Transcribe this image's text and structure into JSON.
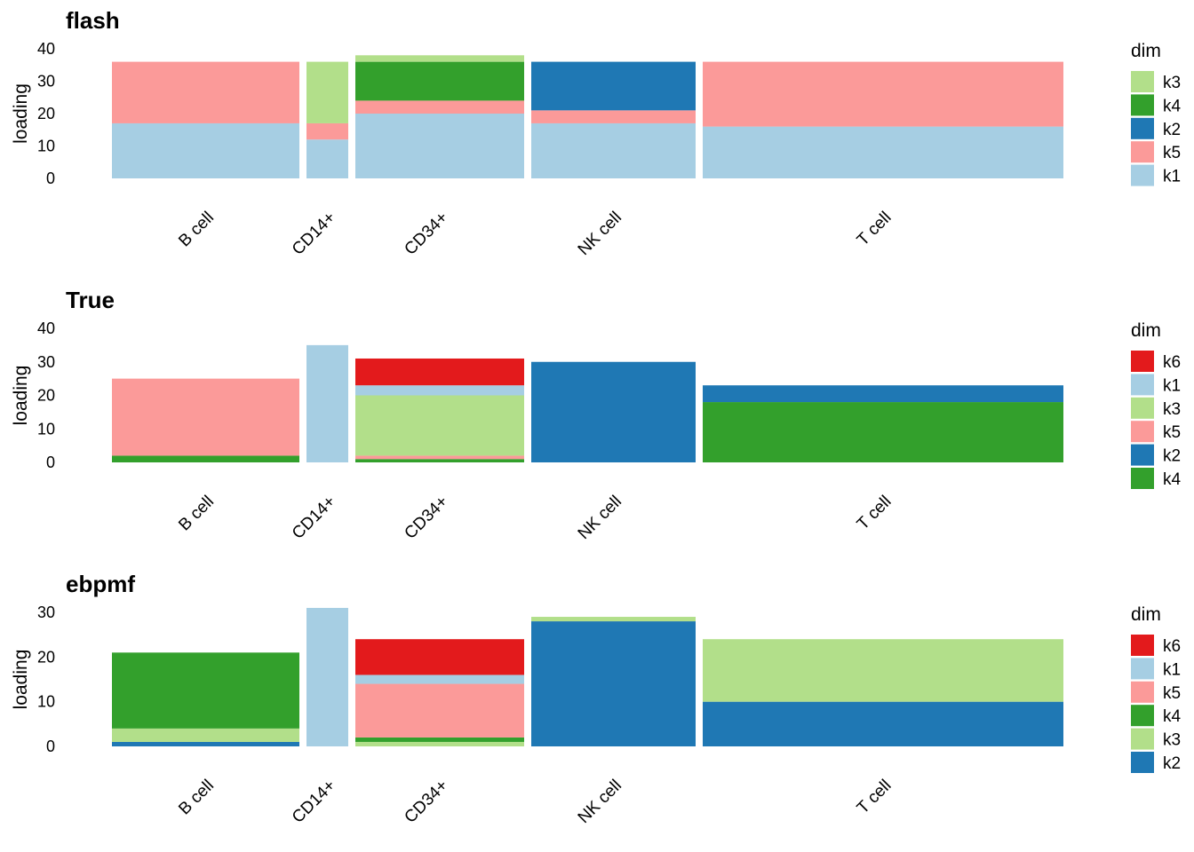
{
  "colors": {
    "k1": "#a6cee3",
    "k2": "#1f78b4",
    "k3": "#b2df8a",
    "k4": "#33a02c",
    "k5": "#fb9a99",
    "k6": "#e31a1c"
  },
  "chart_data": [
    {
      "type": "bar",
      "stacked": true,
      "title": "flash",
      "ylabel": "loading",
      "xlabel": "",
      "ylim": [
        0,
        40
      ],
      "yticks": [
        0,
        10,
        20,
        30,
        40
      ],
      "legend_title": "dim",
      "legend": [
        "k3",
        "k4",
        "k2",
        "k5",
        "k1"
      ],
      "legend_position": "right",
      "grid": false,
      "categories": [
        "B cell",
        "CD14+",
        "CD34+",
        "NK cell",
        "T cell"
      ],
      "series": [
        {
          "name": "k1",
          "values": [
            17,
            12,
            20,
            17,
            16
          ]
        },
        {
          "name": "k5",
          "values": [
            19,
            5,
            4,
            4,
            20
          ]
        },
        {
          "name": "k2",
          "values": [
            0,
            0,
            0,
            15,
            0
          ]
        },
        {
          "name": "k4",
          "values": [
            0,
            0,
            12,
            0,
            0
          ]
        },
        {
          "name": "k3",
          "values": [
            0,
            19,
            2,
            0,
            0
          ]
        }
      ]
    },
    {
      "type": "bar",
      "stacked": true,
      "title": "True",
      "ylabel": "loading",
      "xlabel": "",
      "ylim": [
        0,
        40
      ],
      "yticks": [
        0,
        10,
        20,
        30,
        40
      ],
      "legend_title": "dim",
      "legend": [
        "k6",
        "k1",
        "k3",
        "k5",
        "k2",
        "k4"
      ],
      "legend_position": "right",
      "grid": false,
      "categories": [
        "B cell",
        "CD14+",
        "CD34+",
        "NK cell",
        "T cell"
      ],
      "series": [
        {
          "name": "k4",
          "values": [
            2,
            0,
            1,
            0,
            18
          ]
        },
        {
          "name": "k2",
          "values": [
            0,
            0,
            0,
            30,
            5
          ]
        },
        {
          "name": "k5",
          "values": [
            23,
            0,
            1,
            0,
            0
          ]
        },
        {
          "name": "k3",
          "values": [
            0,
            0,
            18,
            0,
            0
          ]
        },
        {
          "name": "k1",
          "values": [
            0,
            35,
            3,
            0,
            0
          ]
        },
        {
          "name": "k6",
          "values": [
            0,
            0,
            8,
            0,
            0
          ]
        }
      ]
    },
    {
      "type": "bar",
      "stacked": true,
      "title": "ebpmf",
      "ylabel": "loading",
      "xlabel": "",
      "ylim": [
        0,
        30
      ],
      "yticks": [
        0,
        10,
        20,
        30
      ],
      "legend_title": "dim",
      "legend": [
        "k6",
        "k1",
        "k5",
        "k4",
        "k3",
        "k2"
      ],
      "legend_position": "right",
      "grid": false,
      "categories": [
        "B cell",
        "CD14+",
        "CD34+",
        "NK cell",
        "T cell"
      ],
      "series": [
        {
          "name": "k2",
          "values": [
            1,
            0,
            0,
            28,
            10
          ]
        },
        {
          "name": "k3",
          "values": [
            3,
            0,
            1,
            1,
            14
          ]
        },
        {
          "name": "k4",
          "values": [
            17,
            0,
            1,
            0,
            0
          ]
        },
        {
          "name": "k5",
          "values": [
            0,
            0,
            12,
            0,
            0
          ]
        },
        {
          "name": "k1",
          "values": [
            0,
            31,
            2,
            0,
            0
          ]
        },
        {
          "name": "k6",
          "values": [
            0,
            0,
            8,
            0,
            0
          ]
        }
      ]
    }
  ]
}
